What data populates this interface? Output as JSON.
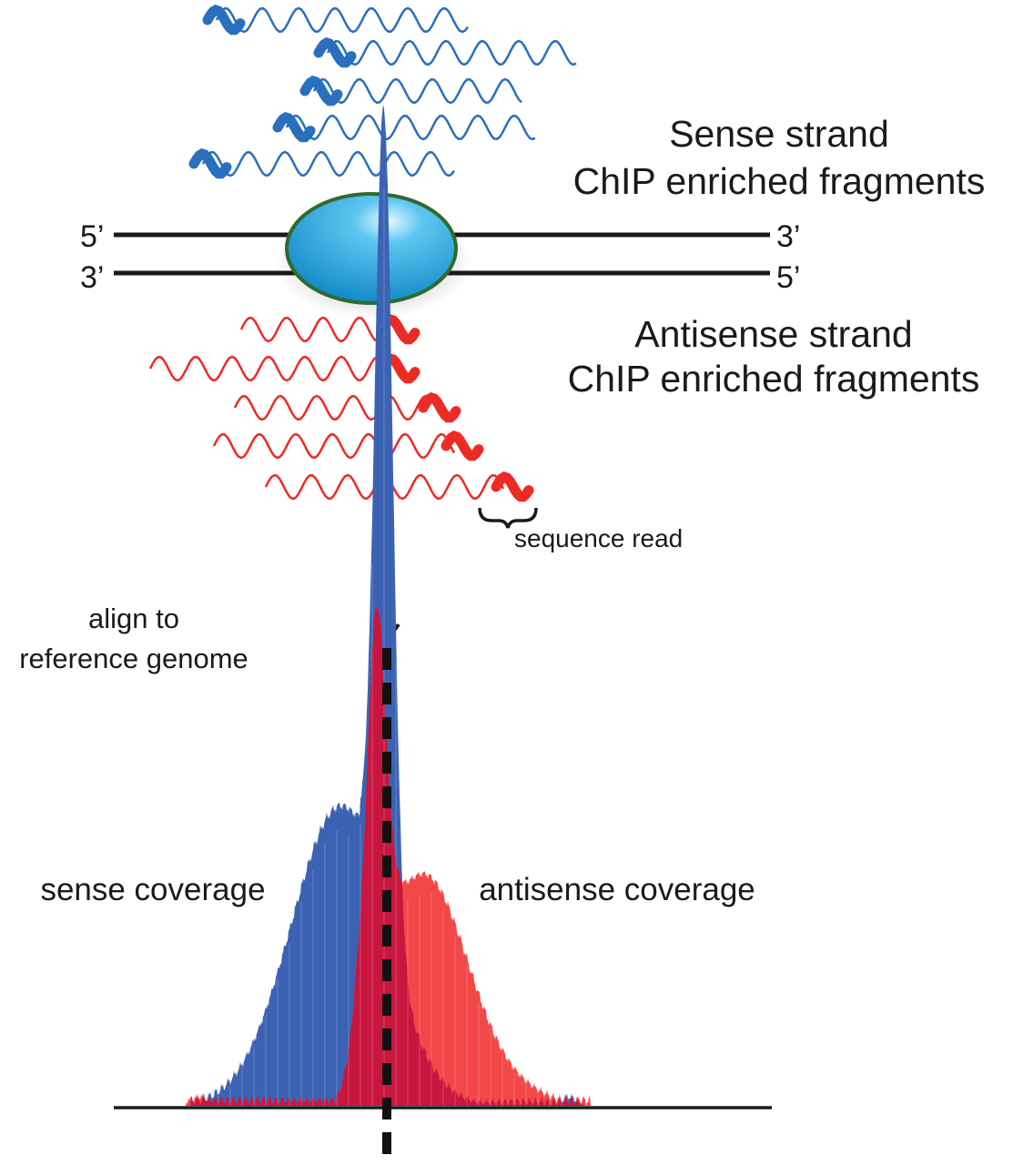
{
  "labels": {
    "sense_title_1": "Sense strand",
    "sense_title_2": "ChIP enriched fragments",
    "antisense_title_1": "Antisense strand",
    "antisense_title_2": "ChIP enriched fragments",
    "top_left_end": "5’",
    "top_right_end": "3’",
    "bottom_left_end": "3’",
    "bottom_right_end": "5’",
    "sequence_read": "sequence read",
    "align_1": "align to",
    "align_2": "reference genome",
    "sense_coverage": "sense coverage",
    "antisense_coverage": "antisense coverage"
  },
  "colors": {
    "sense": "#2a6fbe",
    "antisense": "#ee2a24",
    "sense_coverage_fill": "#3c63b3",
    "antisense_coverage_fill": "#f2383a",
    "overlap_fill": "#c8163f",
    "protein": "#1aa3de",
    "protein_outline": "#2e6b2e",
    "dna": "#1a1a1a"
  }
}
